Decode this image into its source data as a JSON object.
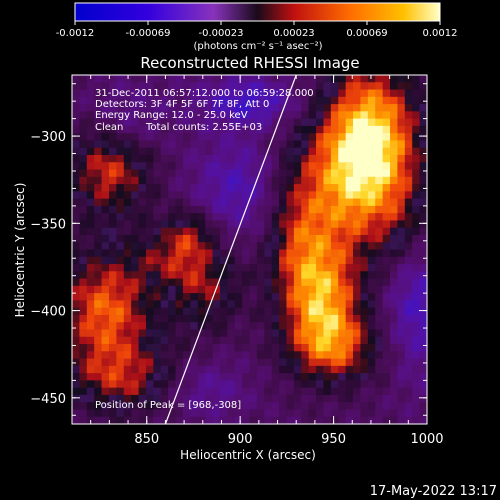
{
  "chart_data": {
    "type": "heatmap",
    "title": "Reconstructed RHESSI Image",
    "xlabel": "Heliocentric X (arcsec)",
    "ylabel": "Heliocentric Y (arcsec)",
    "xlim": [
      810,
      1000
    ],
    "ylim": [
      -465,
      -265
    ],
    "xticks": [
      850,
      900,
      950,
      1000
    ],
    "yticks": [
      -300,
      -350,
      -400,
      -450
    ],
    "colorbar": {
      "ticks": [
        "-0.0012",
        "-0.00069",
        "-0.00023",
        "0.00023",
        "0.00069",
        "0.0012"
      ],
      "range": [
        -0.0012,
        0.0012
      ],
      "unit_label": "(photons cm⁻² s⁻¹ asec⁻²)"
    },
    "annotations": {
      "line1": "31-Dec-2011 06:57:12.000 to 06:59:28.000",
      "line2": "Detectors: 3F 4F 5F 6F 7F 8F, Att 0",
      "line3": "Energy Range: 12.0 - 25.0 keV",
      "line4_method": "Clean",
      "line4_counts": "Total counts: 2.55E+03",
      "peak": "Position of Peak = [968,-308]"
    },
    "limb_line": {
      "x": [
        860,
        930
      ],
      "y": [
        -465,
        -265
      ]
    },
    "blobs": [
      {
        "x": 970,
        "y": -300,
        "sx": 18,
        "sy": 30,
        "amp": 1.1
      },
      {
        "x": 958,
        "y": -330,
        "sx": 22,
        "sy": 30,
        "amp": 0.7
      },
      {
        "x": 945,
        "y": -395,
        "sx": 14,
        "sy": 24,
        "amp": 0.95
      },
      {
        "x": 952,
        "y": -422,
        "sx": 18,
        "sy": 14,
        "amp": 0.6
      },
      {
        "x": 930,
        "y": -360,
        "sx": 12,
        "sy": 30,
        "amp": 0.55
      },
      {
        "x": 830,
        "y": -320,
        "sx": 16,
        "sy": 18,
        "amp": 0.75
      },
      {
        "x": 828,
        "y": -400,
        "sx": 18,
        "sy": 24,
        "amp": 0.9
      },
      {
        "x": 840,
        "y": -440,
        "sx": 24,
        "sy": 14,
        "amp": 0.55
      },
      {
        "x": 880,
        "y": -385,
        "sx": 14,
        "sy": 18,
        "amp": 0.6
      },
      {
        "x": 872,
        "y": -355,
        "sx": 10,
        "sy": 10,
        "amp": 0.5
      },
      {
        "x": 860,
        "y": -370,
        "sx": 14,
        "sy": 10,
        "amp": 0.35
      },
      {
        "x": 990,
        "y": -355,
        "sx": 10,
        "sy": 18,
        "amp": 0.3
      },
      {
        "x": 905,
        "y": -280,
        "sx": 20,
        "sy": 10,
        "amp": -0.6
      },
      {
        "x": 900,
        "y": -330,
        "sx": 18,
        "sy": 20,
        "amp": -0.5
      },
      {
        "x": 995,
        "y": -395,
        "sx": 12,
        "sy": 30,
        "amp": -0.55
      },
      {
        "x": 880,
        "y": -445,
        "sx": 16,
        "sy": 12,
        "amp": -0.4
      },
      {
        "x": 840,
        "y": -290,
        "sx": 14,
        "sy": 14,
        "amp": -0.3
      }
    ]
  },
  "footer": {
    "timestamp": "17-May-2022 13:17"
  }
}
